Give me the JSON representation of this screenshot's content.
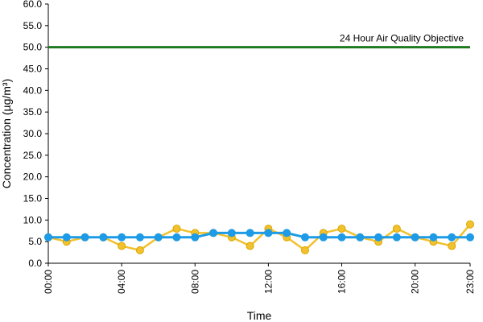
{
  "chart_data": {
    "type": "line",
    "title": "",
    "xlabel": "Time",
    "ylabel": "Concentration (µg/m³)",
    "ylim": [
      0,
      60
    ],
    "y_ticks": [
      "0.0",
      "5.0",
      "10.0",
      "15.0",
      "20.0",
      "25.0",
      "30.0",
      "35.0",
      "40.0",
      "45.0",
      "50.0",
      "55.0",
      "60.0"
    ],
    "x_tick_labels": [
      "00:00",
      "04:00",
      "08:00",
      "12:00",
      "16:00",
      "20:00",
      "23:00"
    ],
    "x_tick_hours": [
      0,
      4,
      8,
      12,
      16,
      20,
      23
    ],
    "grid": false,
    "x": [
      0,
      1,
      2,
      3,
      4,
      5,
      6,
      7,
      8,
      9,
      10,
      11,
      12,
      13,
      14,
      15,
      16,
      17,
      18,
      19,
      20,
      21,
      22,
      23
    ],
    "series": [
      {
        "color": "#f2c12e",
        "values": [
          6,
          5,
          6,
          6,
          4,
          3,
          6,
          8,
          7,
          7,
          6,
          4,
          8,
          6,
          3,
          7,
          8,
          6,
          5,
          8,
          6,
          5,
          4,
          9
        ]
      },
      {
        "color": "#1e9be6",
        "values": [
          6,
          6,
          6,
          6,
          6,
          6,
          6,
          6,
          6,
          7,
          7,
          7,
          7,
          7,
          6,
          6,
          6,
          6,
          6,
          6,
          6,
          6,
          6,
          6
        ]
      }
    ],
    "reference_line": {
      "value": 50,
      "label": "24 Hour Air Quality Objective",
      "color": "#1f7a1f"
    }
  }
}
